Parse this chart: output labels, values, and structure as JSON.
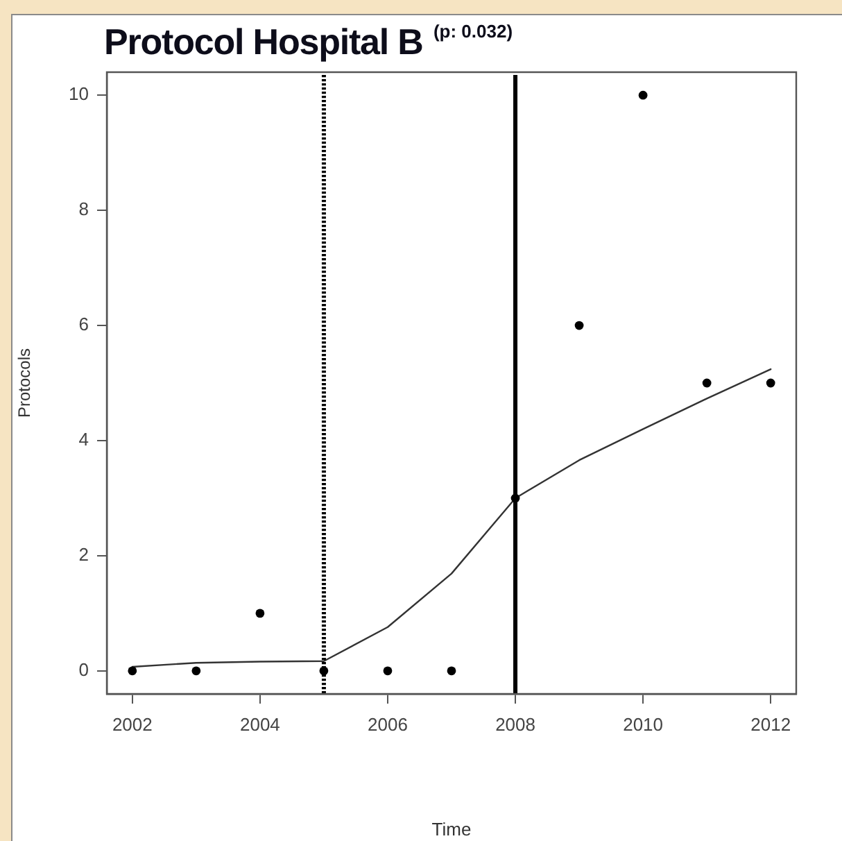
{
  "chart_data": {
    "type": "scatter",
    "title": "Protocol Hospital B $^{(p: 0.032)}$",
    "xlabel": "Time",
    "ylabel": "Protocols",
    "x": [
      2002,
      2003,
      2004,
      2005,
      2006,
      2007,
      2008,
      2009,
      2010,
      2011,
      2012
    ],
    "series": [
      {
        "type": "scatter",
        "color": "#000000",
        "values": [
          0,
          0,
          1,
          0,
          0,
          0,
          3,
          6,
          10,
          5,
          5
        ]
      },
      {
        "type": "line",
        "color": "#333333",
        "marker": "none",
        "values": [
          0.07,
          0.14,
          0.16,
          0.17,
          0.76,
          1.69,
          3.0,
          3.66,
          4.2,
          4.73,
          5.24
        ]
      }
    ],
    "xlim": [
      2001.6,
      2012.4
    ],
    "xticks": [
      2002,
      2004,
      2006,
      2008,
      2010,
      2012
    ],
    "ylim": [
      -0.4,
      10.4
    ],
    "yticks": [
      0,
      2,
      4,
      6,
      8,
      10
    ],
    "ref_lines": [
      {
        "axis": "x",
        "value": 2005,
        "line_style": "dotted",
        "color": "#000000"
      },
      {
        "axis": "x",
        "value": 2008,
        "line_style": "solid",
        "color": "#000000"
      }
    ],
    "marker": "circle",
    "grid": false,
    "legend": false
  }
}
